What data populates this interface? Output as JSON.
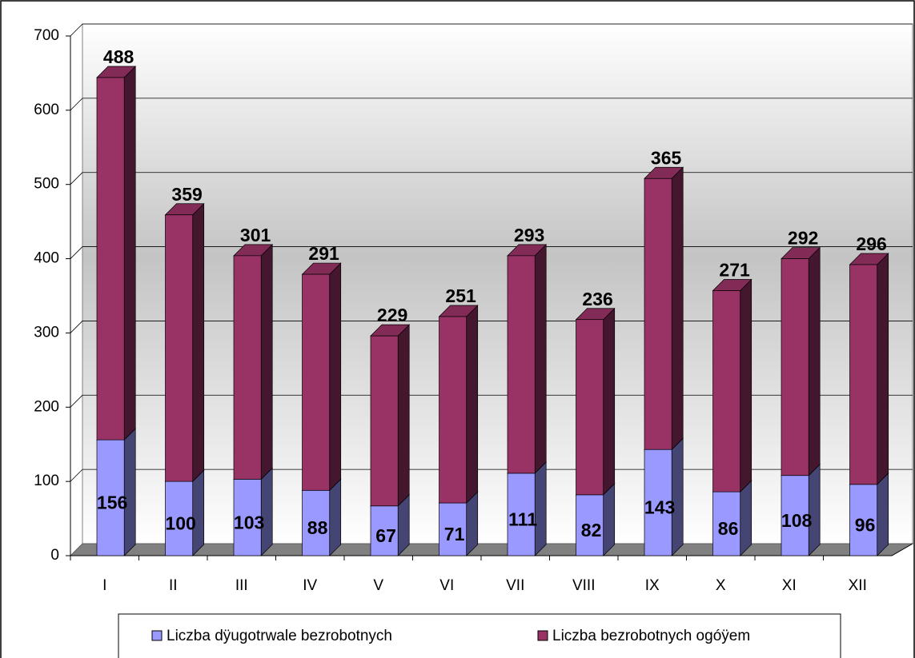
{
  "chart_data": {
    "type": "stacked-bar-3d",
    "categories": [
      "I",
      "II",
      "III",
      "IV",
      "V",
      "VI",
      "VII",
      "VIII",
      "IX",
      "X",
      "XI",
      "XII"
    ],
    "series": [
      {
        "name": "Liczba dÿugotrwale bezrobotnych",
        "color": "#9999ff",
        "values": [
          156,
          100,
          103,
          88,
          67,
          71,
          111,
          82,
          143,
          86,
          108,
          96
        ]
      },
      {
        "name": "Liczba bezrobotnych ogóÿem",
        "color": "#993366",
        "values": [
          488,
          359,
          301,
          291,
          229,
          251,
          293,
          236,
          365,
          271,
          292,
          296
        ]
      }
    ],
    "ylim": [
      0,
      700
    ],
    "yticks": [
      0,
      100,
      200,
      300,
      400,
      500,
      600,
      700
    ],
    "grid": true,
    "legend": "bottom"
  }
}
